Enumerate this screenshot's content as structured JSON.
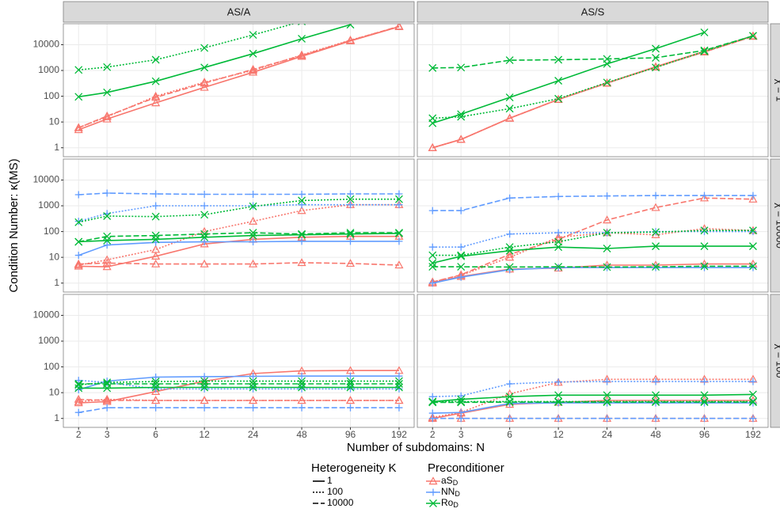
{
  "chart_data": {
    "type": "line",
    "log_x": true,
    "log_y": true,
    "grid": true,
    "y_label": "Condition Number: κ(MS)",
    "x_label": "Number of subdomains: N",
    "columns": [
      "AS/A",
      "AS/S"
    ],
    "rows": [
      "χ = 1",
      "χ = 10000",
      "χ = 100"
    ],
    "x": [
      2,
      3,
      6,
      12,
      24,
      48,
      96,
      192
    ],
    "xlim": [
      1.61,
      238
    ],
    "xticks": [
      2,
      3,
      6,
      12,
      24,
      48,
      96,
      192
    ],
    "ylim": [
      0.45,
      65000
    ],
    "yticks": [
      1,
      10,
      100,
      1000,
      10000
    ],
    "linetype_title": "Heterogeneity K",
    "linetypes": [
      {
        "name": "1",
        "dash": "none"
      },
      {
        "name": "100",
        "dash": "2 2"
      },
      {
        "name": "10000",
        "dash": "7 3"
      }
    ],
    "color_title": "Preconditioner",
    "preconditioners": [
      {
        "name": "aS",
        "sub": "D",
        "color": "#F8766D",
        "marker": "triangle"
      },
      {
        "name": "NN",
        "sub": "D",
        "color": "#619CFF",
        "marker": "plus"
      },
      {
        "name": "Ro",
        "sub": "D",
        "color": "#00BA38",
        "marker": "cross"
      }
    ],
    "panels": [
      [
        [
          [
            [
              5,
              13,
              55,
              220,
              850,
              3500,
              14000,
              50000
            ],
            [
              6,
              16,
              100,
              350,
              1000,
              4000,
              15000,
              50000
            ],
            [
              6,
              17,
              90,
              320,
              1100,
              3800,
              14500,
              52000
            ]
          ],
          [
            [
              null,
              null,
              null,
              null,
              null,
              null,
              null,
              null
            ],
            [
              null,
              null,
              null,
              null,
              null,
              null,
              null,
              null
            ],
            [
              null,
              null,
              null,
              null,
              null,
              null,
              null,
              null
            ]
          ],
          [
            [
              95,
              140,
              380,
              1300,
              4500,
              17000,
              60000,
              null
            ],
            [
              1050,
              1350,
              2600,
              7500,
              24000,
              80000,
              null,
              null
            ],
            [
              null,
              null,
              null,
              null,
              null,
              null,
              null,
              null
            ]
          ]
        ],
        [
          [
            [
              1,
              2.1,
              14,
              75,
              330,
              1400,
              5500,
              22000
            ],
            [
              1,
              2.1,
              14,
              75,
              320,
              1350,
              5200,
              21000
            ],
            [
              1,
              2.1,
              14,
              75,
              320,
              1350,
              5200,
              21000
            ]
          ],
          [
            [
              null,
              null,
              null,
              null,
              null,
              null,
              null,
              null
            ],
            [
              null,
              null,
              null,
              null,
              null,
              null,
              null,
              null
            ],
            [
              null,
              null,
              null,
              null,
              null,
              null,
              null,
              null
            ]
          ],
          [
            [
              9,
              20,
              90,
              400,
              1800,
              7000,
              30000,
              null
            ],
            [
              14,
              16,
              33,
              80,
              340,
              1300,
              5500,
              22000
            ],
            [
              1250,
              1300,
              2500,
              2600,
              2800,
              3100,
              6000,
              22000
            ]
          ]
        ]
      ],
      [
        [
          [
            [
              4.5,
              4.3,
              11,
              33,
              50,
              60,
              65,
              65
            ],
            [
              5,
              8,
              20,
              100,
              250,
              650,
              1100,
              1100
            ],
            [
              5.5,
              6,
              5.5,
              5.5,
              5.5,
              6.2,
              5.8,
              5
            ]
          ],
          [
            [
              12,
              30,
              38,
              40,
              40,
              42,
              42,
              42
            ],
            [
              250,
              500,
              1000,
              1000,
              1000,
              1100,
              1100,
              1100
            ],
            [
              2700,
              3100,
              2900,
              2800,
              2800,
              2800,
              2900,
              2900
            ]
          ],
          [
            [
              40,
              45,
              50,
              60,
              70,
              75,
              80,
              85
            ],
            [
              230,
              400,
              380,
              450,
              950,
              1600,
              1800,
              1800
            ],
            [
              40,
              65,
              70,
              80,
              90,
              80,
              90,
              90
            ]
          ]
        ],
        [
          [
            [
              1,
              1.8,
              3.5,
              3.8,
              5,
              5,
              5.5,
              5.5
            ],
            [
              1.1,
              2,
              10,
              60,
              90,
              75,
              130,
              110
            ],
            [
              1.1,
              2.1,
              13,
              50,
              280,
              850,
              2000,
              1800
            ]
          ],
          [
            [
              1,
              1.7,
              3.3,
              4,
              4,
              4,
              4,
              4
            ],
            [
              25,
              25,
              80,
              90,
              90,
              100,
              100,
              100
            ],
            [
              650,
              650,
              2000,
              2300,
              2400,
              2500,
              2500,
              2500
            ]
          ],
          [
            [
              6,
              11,
              18,
              25,
              22,
              27,
              27,
              27
            ],
            [
              12,
              12,
              25,
              40,
              90,
              95,
              110,
              110
            ],
            [
              4.3,
              4.3,
              4.2,
              4.3,
              4.2,
              4.3,
              4.5,
              4.5
            ]
          ]
        ]
      ],
      [
        [
          [
            [
              4,
              4.5,
              11,
              28,
              55,
              70,
              72,
              72
            ],
            [
              4.5,
              5.5,
              5,
              5,
              5,
              5,
              5,
              5
            ],
            [
              5.5,
              5,
              5,
              5,
              5,
              5,
              5,
              5
            ]
          ],
          [
            [
              13,
              28,
              40,
              42,
              43,
              44,
              44,
              44
            ],
            [
              30,
              25,
              14,
              14,
              14,
              14,
              14,
              14
            ],
            [
              1.7,
              2.6,
              2.6,
              2.6,
              2.6,
              2.6,
              2.6,
              2.6
            ]
          ],
          [
            [
              15,
              15,
              16,
              16,
              16,
              16,
              16,
              16
            ],
            [
              20,
              25,
              27,
              28,
              28,
              28,
              28,
              28
            ],
            [
              22,
              22,
              22,
              22,
              22,
              22,
              22,
              22
            ]
          ]
        ],
        [
          [
            [
              1,
              1.6,
              3.5,
              4.2,
              5,
              5,
              5,
              5
            ],
            [
              1.1,
              1.7,
              9,
              25,
              33,
              33,
              33,
              33
            ],
            [
              1,
              1,
              1,
              1,
              1,
              1,
              1,
              1
            ]
          ],
          [
            [
              1.6,
              1.7,
              3.8,
              4,
              4,
              4,
              4,
              4
            ],
            [
              7,
              7.5,
              22,
              26,
              27,
              27,
              27,
              27
            ],
            [
              1,
              1,
              1,
              1,
              1,
              1,
              1,
              1
            ]
          ],
          [
            [
              4.5,
              5.5,
              7,
              8,
              8,
              8,
              8,
              8.5
            ],
            [
              4.5,
              4.5,
              4.5,
              4.5,
              4.5,
              4.5,
              4.5,
              4.5
            ],
            [
              4.2,
              4.2,
              4.3,
              4.3,
              4.3,
              4.3,
              4.3,
              4.3
            ]
          ]
        ]
      ]
    ]
  }
}
